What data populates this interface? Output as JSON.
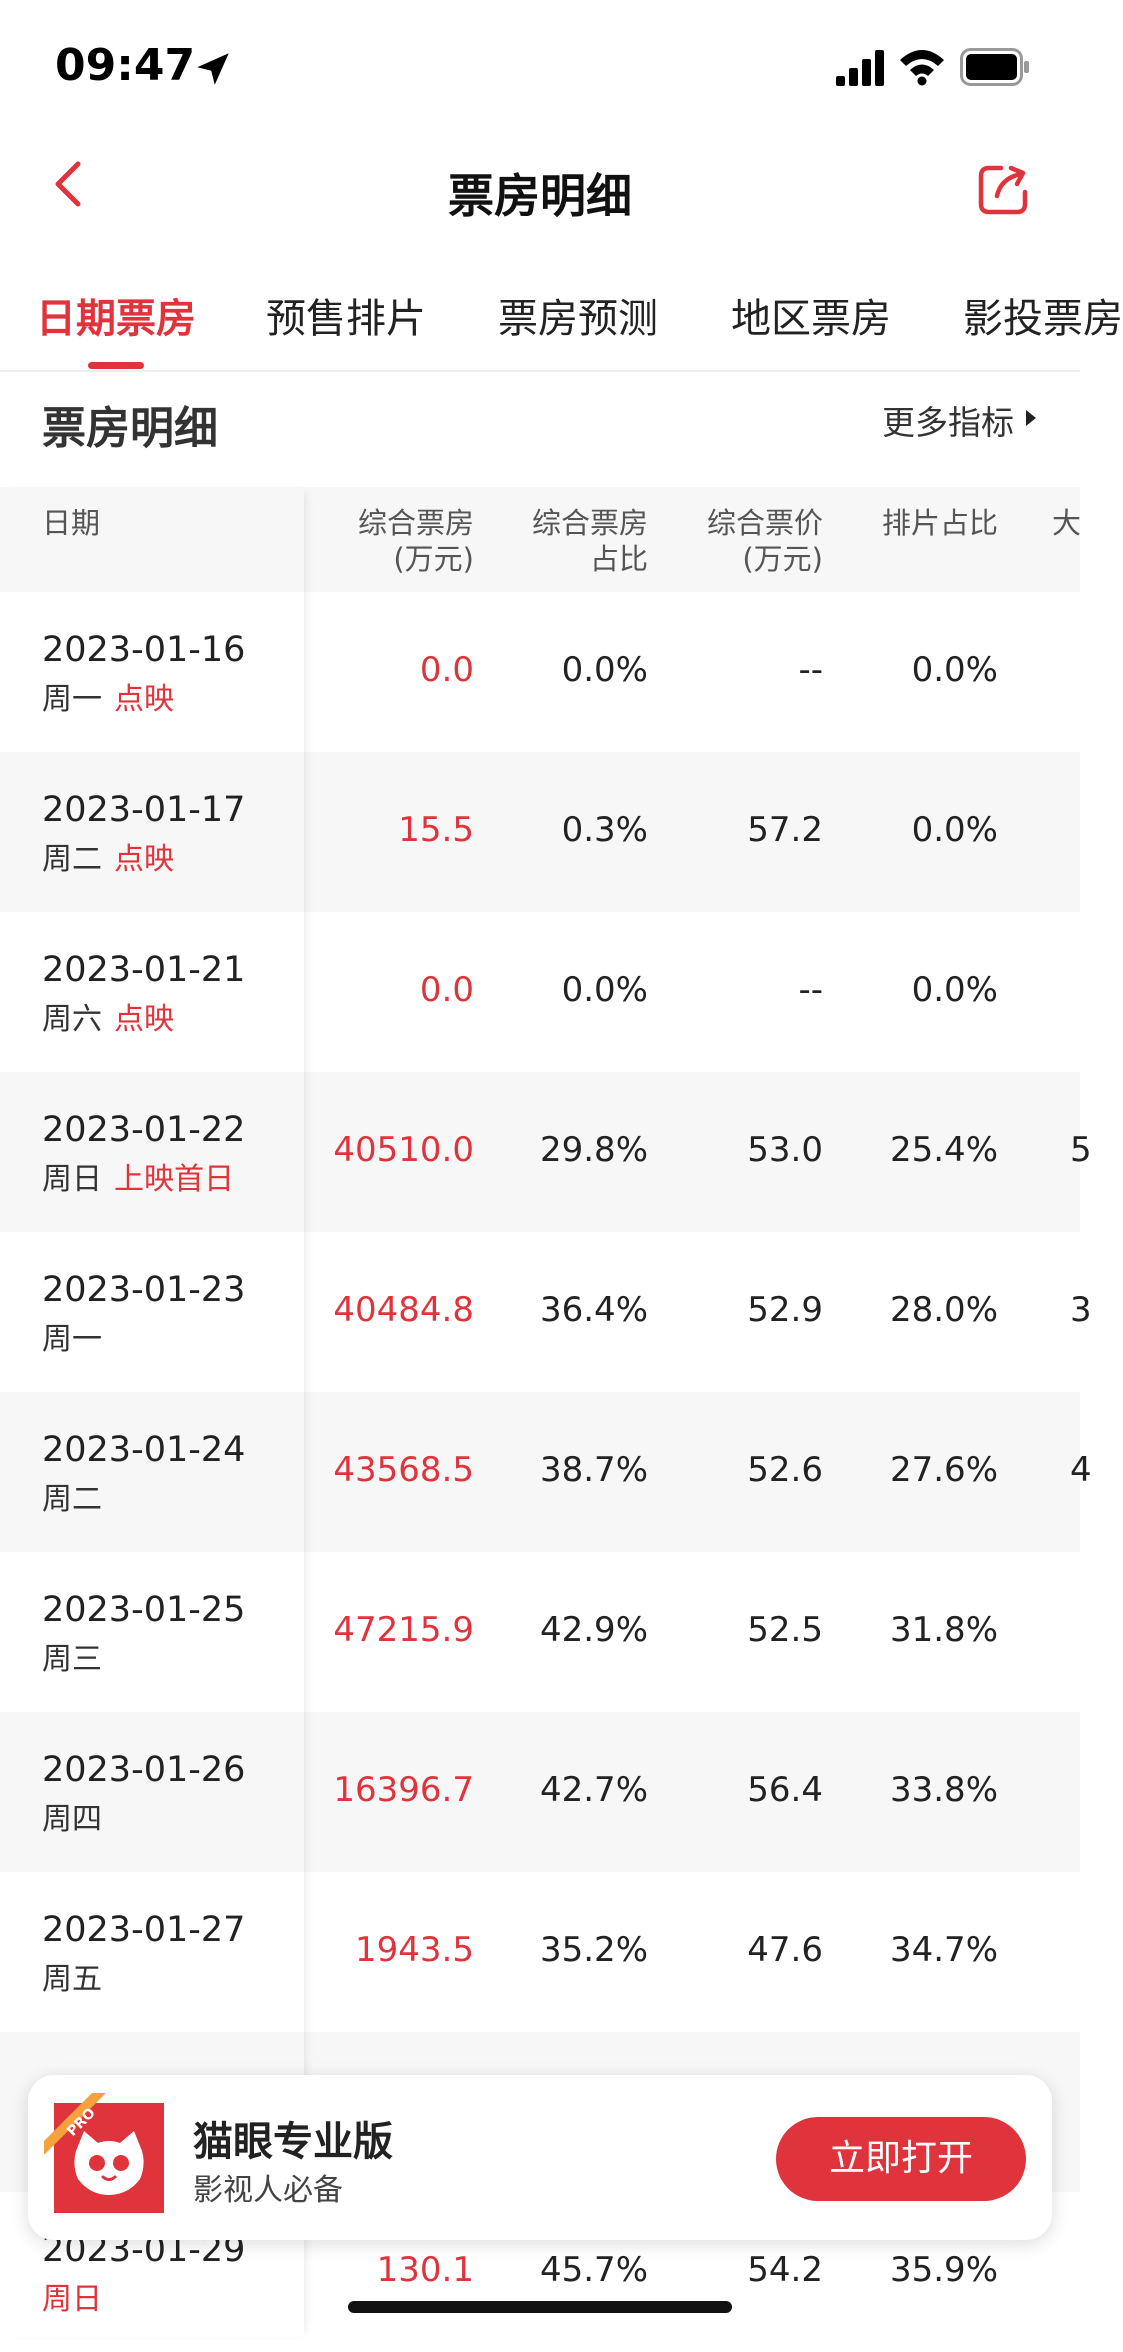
{
  "status": {
    "time": "09:47"
  },
  "nav": {
    "title": "票房明细"
  },
  "tabs": [
    "日期票房",
    "预售排片",
    "票房预测",
    "地区票房",
    "影投票房"
  ],
  "section": {
    "title": "票房明细",
    "more": "更多指标"
  },
  "table": {
    "headers": {
      "date": "日期",
      "box": [
        "综合票房",
        "(万元)"
      ],
      "share": [
        "综合票房",
        "占比"
      ],
      "price": [
        "综合票价",
        "(万元)"
      ],
      "sched": [
        "排片占比"
      ],
      "extra": "大"
    },
    "rows": [
      {
        "date": "2023-01-16",
        "week": "周一",
        "tag": "点映",
        "box": "0.0",
        "share": "0.0%",
        "price": "--",
        "sched": "0.0%",
        "extra": ""
      },
      {
        "date": "2023-01-17",
        "week": "周二",
        "tag": "点映",
        "box": "15.5",
        "share": "0.3%",
        "price": "57.2",
        "sched": "0.0%",
        "extra": ""
      },
      {
        "date": "2023-01-21",
        "week": "周六",
        "tag": "点映",
        "box": "0.0",
        "share": "0.0%",
        "price": "--",
        "sched": "0.0%",
        "extra": ""
      },
      {
        "date": "2023-01-22",
        "week": "周日",
        "tag": "上映首日",
        "box": "40510.0",
        "share": "29.8%",
        "price": "53.0",
        "sched": "25.4%",
        "extra": "5"
      },
      {
        "date": "2023-01-23",
        "week": "周一",
        "tag": "",
        "box": "40484.8",
        "share": "36.4%",
        "price": "52.9",
        "sched": "28.0%",
        "extra": "3"
      },
      {
        "date": "2023-01-24",
        "week": "周二",
        "tag": "",
        "box": "43568.5",
        "share": "38.7%",
        "price": "52.6",
        "sched": "27.6%",
        "extra": "4"
      },
      {
        "date": "2023-01-25",
        "week": "周三",
        "tag": "",
        "box": "47215.9",
        "share": "42.9%",
        "price": "52.5",
        "sched": "31.8%",
        "extra": ""
      },
      {
        "date": "2023-01-26",
        "week": "周四",
        "tag": "",
        "box": "16396.7",
        "share": "42.7%",
        "price": "56.4",
        "sched": "33.8%",
        "extra": ""
      },
      {
        "date": "2023-01-27",
        "week": "周五",
        "tag": "",
        "box": "1943.5",
        "share": "35.2%",
        "price": "47.6",
        "sched": "34.7%",
        "extra": ""
      },
      {
        "date": "",
        "week": "",
        "tag": "",
        "box": "",
        "share": "",
        "price": "",
        "sched": "",
        "extra": ""
      },
      {
        "date": "2023-01-29",
        "week": "",
        "tag": "周日",
        "box": "130.1",
        "share": "45.7%",
        "price": "54.2",
        "sched": "35.9%",
        "extra": ""
      }
    ]
  },
  "promo": {
    "logo_badge": "PRO",
    "name": "猫眼专业版",
    "subtitle": "影视人必备",
    "button": "立即打开"
  },
  "colors": {
    "accent": "#e0343c"
  },
  "icons": [
    "location-arrow-icon",
    "signal-icon",
    "wifi-icon",
    "battery-icon",
    "back-chevron-icon",
    "share-icon",
    "play-right-icon",
    "cat-logo-icon"
  ]
}
